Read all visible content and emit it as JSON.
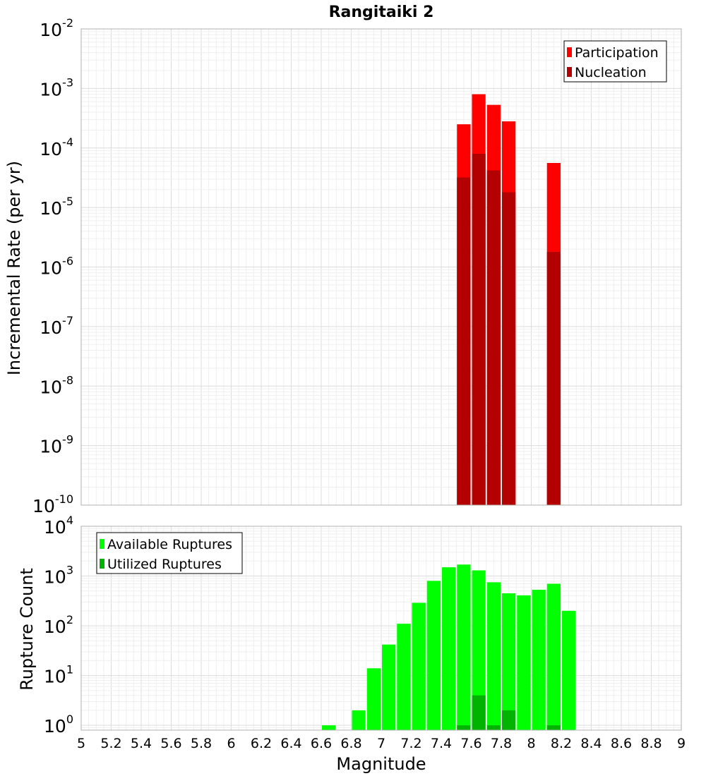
{
  "chart_data": [
    {
      "type": "bar",
      "title": "Rangitaiki 2",
      "ylabel": "Incremental Rate (per yr)",
      "xlabel": "",
      "yscale": "log",
      "ylim": [
        1e-10,
        0.01
      ],
      "xlim": [
        5,
        9
      ],
      "grid": true,
      "legend_position": "top-right",
      "y_ticks": [
        {
          "base": "10",
          "exp": "-10",
          "value": 1e-10
        },
        {
          "base": "10",
          "exp": "-9",
          "value": 1e-09
        },
        {
          "base": "10",
          "exp": "-8",
          "value": 1e-08
        },
        {
          "base": "10",
          "exp": "-7",
          "value": 1e-07
        },
        {
          "base": "10",
          "exp": "-6",
          "value": 1e-06
        },
        {
          "base": "10",
          "exp": "-5",
          "value": 1e-05
        },
        {
          "base": "10",
          "exp": "-4",
          "value": 0.0001
        },
        {
          "base": "10",
          "exp": "-3",
          "value": 0.001
        },
        {
          "base": "10",
          "exp": "-2",
          "value": 0.01
        }
      ],
      "series": [
        {
          "name": "Participation",
          "color": "#ff0000",
          "points": [
            {
              "x": 7.55,
              "y": 0.00025
            },
            {
              "x": 7.65,
              "y": 0.0008
            },
            {
              "x": 7.75,
              "y": 0.00053
            },
            {
              "x": 7.85,
              "y": 0.00028
            },
            {
              "x": 8.15,
              "y": 5.6e-05
            }
          ]
        },
        {
          "name": "Nucleation",
          "color": "#b30000",
          "points": [
            {
              "x": 7.55,
              "y": 3.2e-05
            },
            {
              "x": 7.65,
              "y": 8e-05
            },
            {
              "x": 7.75,
              "y": 4.2e-05
            },
            {
              "x": 7.85,
              "y": 1.8e-05
            },
            {
              "x": 8.15,
              "y": 1.8e-06
            }
          ]
        }
      ]
    },
    {
      "type": "bar",
      "title": "",
      "ylabel": "Rupture Count",
      "xlabel": "Magnitude",
      "yscale": "log",
      "ylim": [
        0.8,
        10000
      ],
      "xlim": [
        5,
        9
      ],
      "grid": true,
      "legend_position": "top-left",
      "x_ticks": [
        "5",
        "5.2",
        "5.4",
        "5.6",
        "5.8",
        "6",
        "6.2",
        "6.4",
        "6.6",
        "6.8",
        "7",
        "7.2",
        "7.4",
        "7.6",
        "7.8",
        "8",
        "8.2",
        "8.4",
        "8.6",
        "8.8",
        "9"
      ],
      "y_ticks": [
        {
          "base": "10",
          "exp": "0",
          "value": 1
        },
        {
          "base": "10",
          "exp": "1",
          "value": 10
        },
        {
          "base": "10",
          "exp": "2",
          "value": 100
        },
        {
          "base": "10",
          "exp": "3",
          "value": 1000
        },
        {
          "base": "10",
          "exp": "4",
          "value": 10000
        }
      ],
      "series": [
        {
          "name": "Available Ruptures",
          "color": "#00ff00",
          "points": [
            {
              "x": 6.65,
              "y": 1
            },
            {
              "x": 6.85,
              "y": 2
            },
            {
              "x": 6.95,
              "y": 14
            },
            {
              "x": 7.05,
              "y": 42
            },
            {
              "x": 7.15,
              "y": 110
            },
            {
              "x": 7.25,
              "y": 290
            },
            {
              "x": 7.35,
              "y": 800
            },
            {
              "x": 7.45,
              "y": 1500
            },
            {
              "x": 7.55,
              "y": 1700
            },
            {
              "x": 7.65,
              "y": 1300
            },
            {
              "x": 7.75,
              "y": 750
            },
            {
              "x": 7.85,
              "y": 450
            },
            {
              "x": 7.95,
              "y": 410
            },
            {
              "x": 8.05,
              "y": 530
            },
            {
              "x": 8.15,
              "y": 700
            },
            {
              "x": 8.25,
              "y": 200
            }
          ]
        },
        {
          "name": "Utilized Ruptures",
          "color": "#00b300",
          "points": [
            {
              "x": 7.55,
              "y": 1
            },
            {
              "x": 7.65,
              "y": 4
            },
            {
              "x": 7.75,
              "y": 1
            },
            {
              "x": 7.85,
              "y": 2
            },
            {
              "x": 8.15,
              "y": 1
            }
          ]
        }
      ]
    }
  ]
}
